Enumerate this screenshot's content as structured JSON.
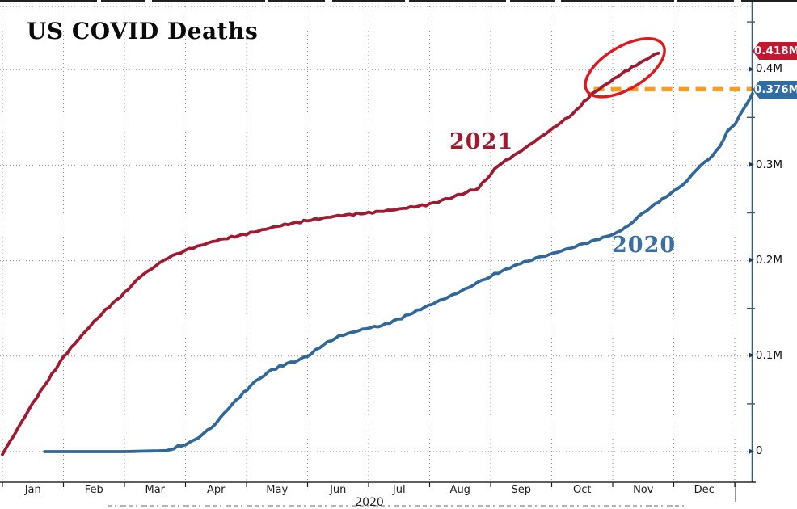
{
  "title": "US COVID Deaths",
  "labels": {
    "series_2021": "2021",
    "series_2020": "2020",
    "axis_year": "2020",
    "badge_red": "0.418M",
    "badge_blue": "0.376M"
  },
  "colors": {
    "line_2021": "#9e1b32",
    "line_2020": "#31689a",
    "badge_red_bg": "#c8142f",
    "badge_blue_bg": "#2e6da8",
    "orange_dashed": "#f59e1f",
    "ellipse_stroke": "#e0181f",
    "grid": "#8c8c8c",
    "y_axis": "#33607c",
    "x_axis": "#000000"
  },
  "chart_data": {
    "type": "line",
    "title": "US COVID Deaths",
    "x_axis": {
      "months": [
        "Jan",
        "Feb",
        "Mar",
        "Apr",
        "May",
        "Jun",
        "Jul",
        "Aug",
        "Sep",
        "Oct",
        "Nov",
        "Dec"
      ],
      "year_label": "2020",
      "range_months": [
        0,
        12.3
      ]
    },
    "y_axis": {
      "ticks": [
        {
          "value": 0.0,
          "label": "0"
        },
        {
          "value": 0.1,
          "label": "0.1M"
        },
        {
          "value": 0.2,
          "label": "0.2M"
        },
        {
          "value": 0.3,
          "label": "0.3M"
        },
        {
          "value": 0.4,
          "label": "0.4M"
        }
      ],
      "minor_tick_values": [
        0.05,
        0.15,
        0.25,
        0.35,
        0.45
      ],
      "range": [
        0,
        0.47
      ],
      "unit": "millions of deaths"
    },
    "series": [
      {
        "name": "2021",
        "color": "#9e1b32",
        "end_value_label": "0.418M",
        "points": [
          [
            0.0,
            -0.003
          ],
          [
            0.25,
            0.024
          ],
          [
            0.5,
            0.051
          ],
          [
            0.75,
            0.075
          ],
          [
            1.0,
            0.099
          ],
          [
            1.25,
            0.118
          ],
          [
            1.5,
            0.136
          ],
          [
            1.75,
            0.152
          ],
          [
            2.0,
            0.166
          ],
          [
            2.25,
            0.183
          ],
          [
            2.5,
            0.194
          ],
          [
            2.65,
            0.201
          ],
          [
            3.0,
            0.211
          ],
          [
            3.5,
            0.221
          ],
          [
            4.0,
            0.228
          ],
          [
            4.5,
            0.236
          ],
          [
            5.0,
            0.242
          ],
          [
            5.5,
            0.247
          ],
          [
            6.0,
            0.25
          ],
          [
            6.5,
            0.254
          ],
          [
            7.0,
            0.259
          ],
          [
            7.4,
            0.267
          ],
          [
            7.8,
            0.276
          ],
          [
            8.13,
            0.3
          ],
          [
            8.5,
            0.315
          ],
          [
            8.9,
            0.333
          ],
          [
            9.35,
            0.354
          ],
          [
            9.65,
            0.374
          ],
          [
            9.9,
            0.385
          ],
          [
            10.2,
            0.398
          ],
          [
            10.5,
            0.409
          ],
          [
            10.75,
            0.418
          ]
        ]
      },
      {
        "name": "2020",
        "color": "#31689a",
        "end_value_label": "0.376M",
        "points": [
          [
            0.69,
            0.0
          ],
          [
            2.0,
            0.0
          ],
          [
            2.68,
            0.001
          ],
          [
            3.07,
            0.009
          ],
          [
            3.43,
            0.025
          ],
          [
            3.77,
            0.05
          ],
          [
            4.07,
            0.069
          ],
          [
            4.36,
            0.084
          ],
          [
            4.66,
            0.092
          ],
          [
            4.86,
            0.096
          ],
          [
            5.0,
            0.1
          ],
          [
            5.26,
            0.112
          ],
          [
            5.52,
            0.121
          ],
          [
            5.96,
            0.129
          ],
          [
            6.22,
            0.132
          ],
          [
            6.54,
            0.14
          ],
          [
            6.98,
            0.153
          ],
          [
            7.38,
            0.164
          ],
          [
            7.64,
            0.172
          ],
          [
            8.0,
            0.184
          ],
          [
            8.44,
            0.196
          ],
          [
            8.61,
            0.2
          ],
          [
            9.1,
            0.209
          ],
          [
            9.59,
            0.219
          ],
          [
            10.03,
            0.228
          ],
          [
            10.2,
            0.234
          ],
          [
            10.42,
            0.246
          ],
          [
            10.69,
            0.259
          ],
          [
            10.99,
            0.272
          ],
          [
            11.22,
            0.284
          ],
          [
            11.44,
            0.3
          ],
          [
            11.58,
            0.306
          ],
          [
            11.75,
            0.319
          ],
          [
            11.88,
            0.335
          ],
          [
            12.01,
            0.344
          ],
          [
            12.15,
            0.359
          ],
          [
            12.29,
            0.375
          ]
        ]
      }
    ],
    "annotations": {
      "highlight_ellipse": {
        "description": "red ellipse circling the late-2021 divergence of the 2021 line",
        "center_month": 10.2,
        "center_value": 0.402,
        "rotation_deg": -31
      },
      "reference_dashed_line": {
        "description": "orange dashed horizontal line from 2021 curve to 0.376M badge",
        "value": 0.3795,
        "from_month": 9.69,
        "to_month": 12.3,
        "color": "#f59e1f"
      }
    },
    "legend": "inline labels on curves",
    "grid": "dotted gray, monthly vertical lines and 0.1M horizontal lines"
  }
}
